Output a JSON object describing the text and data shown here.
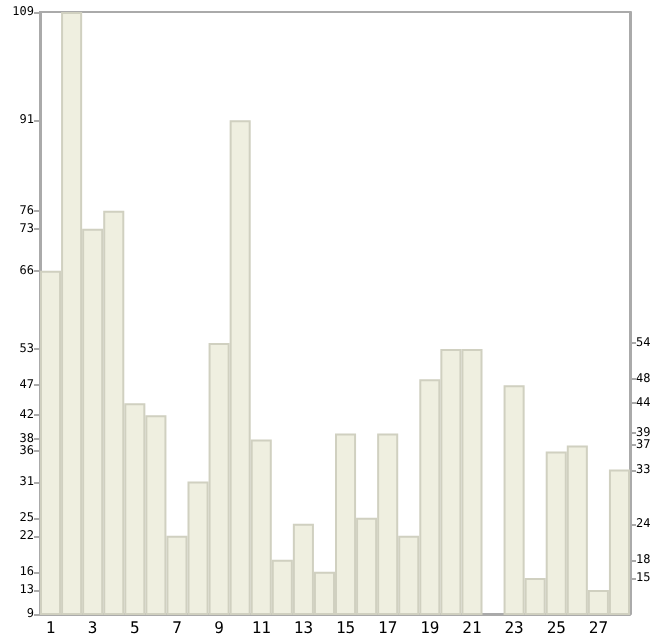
{
  "chart_data": {
    "type": "bar",
    "categories": [
      "1",
      null,
      "3",
      null,
      "5",
      null,
      "7",
      null,
      "9",
      null,
      "11",
      null,
      "13",
      null,
      "15",
      null,
      "17",
      null,
      "19",
      null,
      "21",
      null,
      "23",
      null,
      "25",
      null,
      "27",
      null
    ],
    "values": [
      66,
      109,
      73,
      76,
      44,
      42,
      22,
      31,
      54,
      91,
      38,
      18,
      24,
      16,
      39,
      25,
      39,
      22,
      48,
      53,
      53,
      9,
      47,
      15,
      36,
      37,
      13,
      33
    ],
    "color": "#efefe0",
    "ylim": [
      9,
      109
    ],
    "yticks": [
      9,
      13,
      16,
      22,
      25,
      31,
      36,
      38,
      42,
      47,
      53,
      66,
      73,
      76,
      91,
      109
    ],
    "y2lim": [
      9,
      109
    ],
    "y2ticks": [
      15,
      18,
      24,
      33,
      37,
      39,
      44,
      48,
      54
    ],
    "grid": false
  }
}
